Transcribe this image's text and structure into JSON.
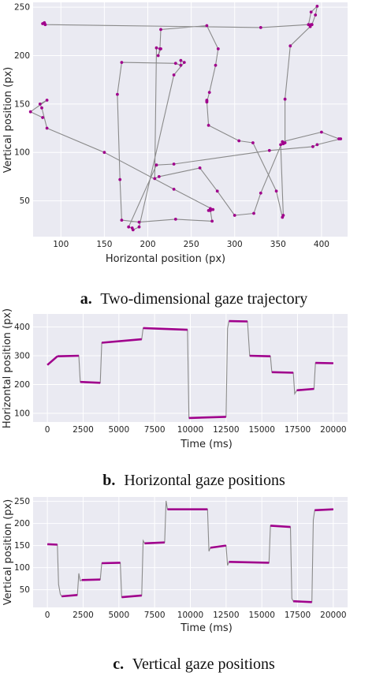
{
  "colors": {
    "background": "#eaeaf2",
    "grid": "#ffffff",
    "line": "#8a8a8a",
    "marker": "#a0008c"
  },
  "chart_data": [
    {
      "type": "line",
      "subplot": "a",
      "caption_label": "a.",
      "caption_text": "Two-dimensional gaze trajectory",
      "xlabel": "Horizontal position (px)",
      "ylabel": "Vertical position (px)",
      "xlim": [
        68,
        430
      ],
      "ylim": [
        13,
        255
      ],
      "xticks": [
        100,
        150,
        200,
        250,
        300,
        350,
        400
      ],
      "yticks": [
        50,
        100,
        150,
        200,
        250
      ],
      "grid": true,
      "series": [
        {
          "x": [
            79,
            81,
            82,
            330,
            385,
            388,
            395,
            393,
            389,
            388,
            387,
            364,
            358,
            358,
            356,
            353,
            356,
            355,
            348,
            321,
            305,
            270,
            268,
            268,
            268,
            271,
            278,
            281,
            268,
            215,
            214,
            212,
            215,
            210,
            208,
            213,
            260,
            280,
            300,
            322,
            330,
            355,
            400,
            420,
            422,
            395,
            390,
            340,
            230,
            210,
            178,
            182,
            183,
            190,
            230,
            242,
            238,
            238,
            232,
            170,
            165,
            168,
            170,
            190,
            232,
            274,
            272,
            272,
            270,
            275,
            230,
            150,
            84,
            78,
            76,
            84,
            65,
            79
          ],
          "y": [
            233,
            234,
            232,
            229,
            232,
            245,
            251,
            242,
            232,
            232,
            230,
            210,
            155,
            110,
            109,
            108,
            35,
            33,
            60,
            110,
            112,
            128,
            153,
            154,
            152,
            162,
            190,
            207,
            231,
            227,
            207,
            200,
            207,
            208,
            73,
            75,
            84,
            60,
            35,
            37,
            58,
            111,
            121,
            114,
            114,
            108,
            106,
            102,
            88,
            87,
            23,
            22,
            20,
            23,
            180,
            193,
            195,
            190,
            192,
            193,
            160,
            72,
            30,
            28,
            31,
            29,
            40,
            42,
            40,
            41,
            62,
            100,
            125,
            146,
            150,
            154,
            142,
            136
          ]
        }
      ]
    },
    {
      "type": "line",
      "subplot": "b",
      "caption_label": "b.",
      "caption_text": "Horizontal gaze positions",
      "xlabel": "Time (ms)",
      "ylabel": "Horizontal position (px)",
      "xlim": [
        -1000,
        21000
      ],
      "ylim": [
        70,
        445
      ],
      "xticks": [
        0,
        2500,
        5000,
        7500,
        10000,
        12500,
        15000,
        17500,
        20000
      ],
      "yticks": [
        100,
        200,
        300,
        400
      ],
      "grid": true,
      "series": [
        {
          "x": [
            0,
            700,
            2200,
            2300,
            3700,
            3800,
            6600,
            6700,
            9800,
            9900,
            12500,
            12600,
            12700,
            14000,
            14150,
            15600,
            15700,
            17200,
            17300,
            17450,
            18650,
            18750,
            20000
          ],
          "y": [
            268,
            298,
            300,
            209,
            206,
            345,
            357,
            396,
            390,
            84,
            88,
            395,
            420,
            419,
            300,
            298,
            243,
            241,
            168,
            180,
            185,
            275,
            274
          ]
        }
      ]
    },
    {
      "type": "line",
      "subplot": "c",
      "caption_label": "c.",
      "caption_text": "Vertical gaze positions",
      "xlabel": "Time (ms)",
      "ylabel": "Vertical position (px)",
      "xlim": [
        -1000,
        21000
      ],
      "ylim": [
        10,
        260
      ],
      "xticks": [
        0,
        2500,
        5000,
        7500,
        10000,
        12500,
        15000,
        17500,
        20000
      ],
      "yticks": [
        50,
        100,
        150,
        200,
        250
      ],
      "grid": true,
      "series": [
        {
          "x": [
            0,
            700,
            780,
            900,
            1000,
            2100,
            2200,
            2300,
            2400,
            3700,
            3800,
            5100,
            5200,
            6600,
            6700,
            6800,
            8200,
            8300,
            8400,
            11200,
            11300,
            11400,
            12500,
            12600,
            12700,
            15500,
            15600,
            17000,
            17100,
            17200,
            18500,
            18600,
            18700,
            20000
          ],
          "y": [
            153,
            152,
            62,
            40,
            35,
            38,
            87,
            70,
            72,
            73,
            110,
            111,
            33,
            37,
            161,
            155,
            157,
            251,
            232,
            232,
            137,
            145,
            150,
            105,
            113,
            111,
            195,
            192,
            30,
            24,
            22,
            208,
            230,
            232
          ]
        }
      ]
    }
  ]
}
